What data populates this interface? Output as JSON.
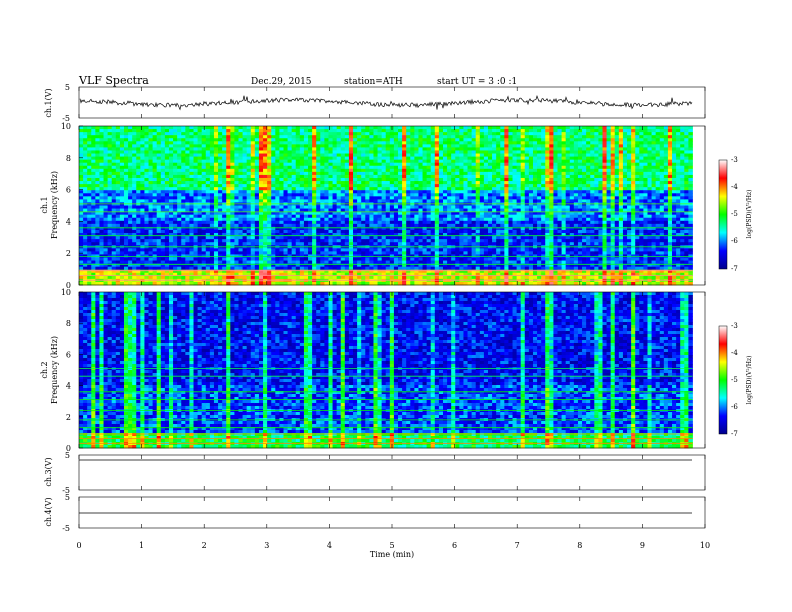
{
  "header": {
    "title": "VLF Spectra",
    "date": "Dec.29, 2015",
    "station": "station=ATH",
    "start": "start UT = 3 :0 :1"
  },
  "chart_data": [
    {
      "panel": "ch1-waveform",
      "type": "line",
      "ylabel": "ch.1(V)",
      "ylim": [
        -5,
        5
      ],
      "yticks": [
        "5",
        "-5"
      ],
      "baseline": 0,
      "noise": "small fluctuations around 0"
    },
    {
      "panel": "ch1-spectrogram",
      "type": "heatmap",
      "ylabel": "ch.1 Frequency (kHz)",
      "ylim": [
        0,
        10
      ],
      "yticks": [
        "0",
        "2",
        "4",
        "6",
        "8",
        "10"
      ],
      "colorbar": {
        "label": "log(PSD)(V²/Hz)",
        "range": [
          -7,
          -3
        ],
        "ticks": [
          "-3",
          "-4",
          "-5",
          "-6",
          "-7"
        ]
      },
      "typical_logpsd": {
        "0-1kHz": -4.5,
        "1-4kHz": -6.3,
        "4-6kHz": -6.0,
        "6-10kHz": -5.3
      }
    },
    {
      "panel": "ch2-spectrogram",
      "type": "heatmap",
      "ylabel": "ch.2 Frequency (kHz)",
      "ylim": [
        0,
        10
      ],
      "yticks": [
        "0",
        "2",
        "4",
        "6",
        "8",
        "10"
      ],
      "colorbar": {
        "label": "log(PSD)(V²/Hz)",
        "range": [
          -7,
          -3
        ],
        "ticks": [
          "-3",
          "-4",
          "-5",
          "-6",
          "-7"
        ]
      },
      "typical_logpsd": {
        "0-1kHz": -5.2,
        "1-4kHz": -6.2,
        "4-10kHz": -6.4
      }
    },
    {
      "panel": "ch3-waveform",
      "type": "line",
      "ylabel": "ch.3(V)",
      "ylim": [
        -5,
        5
      ],
      "yticks": [
        "5",
        "-5"
      ],
      "baseline": 0
    },
    {
      "panel": "ch4-waveform",
      "type": "line",
      "ylabel": "ch.4(V)",
      "ylim": [
        -5,
        5
      ],
      "yticks": [
        "5",
        "-5"
      ],
      "baseline": 0
    }
  ],
  "xaxis": {
    "label": "Time (min)",
    "range": [
      0,
      10
    ],
    "data_end": 9.8,
    "ticks": [
      "0",
      "1",
      "2",
      "3",
      "4",
      "5",
      "6",
      "7",
      "8",
      "9",
      "10"
    ]
  },
  "colors": {
    "colormap": [
      "#00008c",
      "#0000ff",
      "#00ffff",
      "#00ff00",
      "#ffff00",
      "#ff0000",
      "#ffffff"
    ]
  }
}
